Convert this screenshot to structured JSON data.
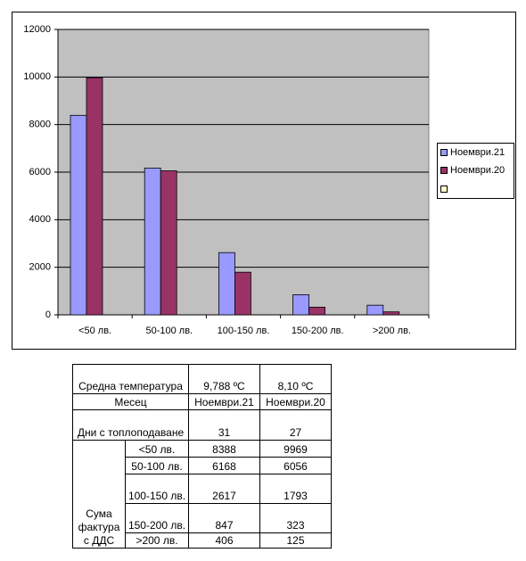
{
  "chart_data": {
    "type": "bar",
    "categories": [
      "<50 лв.",
      "50-100 лв.",
      "100-150 лв.",
      "150-200 лв.",
      ">200 лв."
    ],
    "series": [
      {
        "name": "Ноември.21",
        "color": "#9999ff",
        "values": [
          8388,
          6168,
          2617,
          847,
          406
        ]
      },
      {
        "name": "Ноември.20",
        "color": "#993366",
        "values": [
          9969,
          6056,
          1793,
          323,
          125
        ]
      }
    ],
    "ylim": [
      0,
      12000
    ],
    "yticks": [
      0,
      2000,
      4000,
      6000,
      8000,
      10000,
      12000
    ],
    "grid": true,
    "legend": "right"
  },
  "table": {
    "temperature": {
      "label": "Средна температура",
      "values": [
        "9,788 ºC",
        "8,10 ºC"
      ]
    },
    "month": {
      "label": "Месец",
      "values": [
        "Ноември.21",
        "Ноември.20"
      ]
    },
    "heating_days": {
      "label": "Дни с топлоподаване",
      "values": [
        31,
        27
      ]
    },
    "invoice": {
      "label": "Сума фактура с ДДС",
      "rows": [
        {
          "range": "<50 лв.",
          "values": [
            8388,
            9969
          ]
        },
        {
          "range": "50-100 лв.",
          "values": [
            6168,
            6056
          ]
        },
        {
          "range": "100-150 лв.",
          "values": [
            2617,
            1793
          ]
        },
        {
          "range": "150-200 лв.",
          "values": [
            847,
            323
          ]
        },
        {
          "range": ">200 лв.",
          "values": [
            406,
            125
          ]
        }
      ]
    }
  }
}
